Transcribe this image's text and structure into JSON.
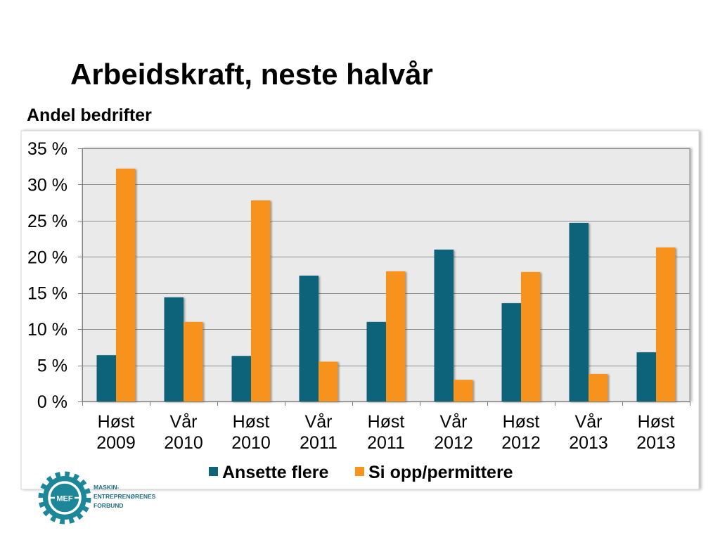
{
  "chart_data": {
    "type": "bar",
    "title": "Arbeidskraft, neste halvår",
    "ylabel": "Andel bedrifter",
    "categories": [
      "Høst 2009",
      "Vår 2010",
      "Høst 2010",
      "Vår 2011",
      "Høst 2011",
      "Vår 2012",
      "Høst 2012",
      "Vår 2013",
      "Høst 2013"
    ],
    "ylim": [
      0,
      35
    ],
    "yticks": [
      0,
      5,
      10,
      15,
      20,
      25,
      30,
      35
    ],
    "ytick_labels": [
      "0 %",
      "5 %",
      "10 %",
      "15 %",
      "20 %",
      "25 %",
      "30 %",
      "35 %"
    ],
    "series": [
      {
        "name": "Ansette flere",
        "color": "#0f6479",
        "values": [
          6.4,
          14.4,
          6.3,
          17.4,
          11.0,
          21.0,
          13.6,
          24.7,
          6.8
        ]
      },
      {
        "name": "Si opp/permittere",
        "color": "#f7931e",
        "values": [
          32.2,
          11.0,
          27.8,
          5.5,
          18.0,
          3.0,
          17.9,
          3.8,
          21.3
        ]
      }
    ],
    "grid": true,
    "legend_position": "bottom"
  },
  "logo": {
    "mark": "MEF",
    "lines": [
      "MASKIN-",
      "ENTREPRENØRENES",
      "FORBUND"
    ],
    "color": "#1b8798",
    "text_color": "#1f6e84"
  },
  "colors": {
    "plot_background": "#eaeaea",
    "gridline": "#8c8c8c"
  }
}
